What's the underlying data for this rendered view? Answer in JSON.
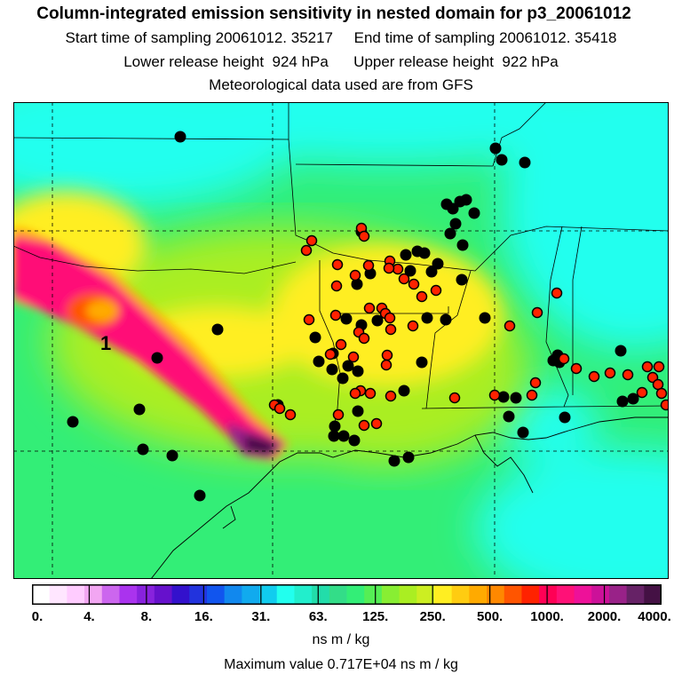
{
  "header": {
    "title": "Column-integrated emission sensitivity in nested domain for p3_20061012",
    "sampling": "Start time of sampling 20061012. 35217     End time of sampling 20061012. 35418",
    "heights": "Lower release height  924 hPa      Upper release height  922 hPa",
    "met": "Meteorological data used are from GFS"
  },
  "map": {
    "release_label": "1",
    "colors": {
      "background_green": "#33ee77",
      "cyan": "#22ffee",
      "yellow": "#ffee22",
      "magenta": "#ff1177",
      "dark_purple": "#441144",
      "marker_black": "#000000",
      "marker_red": "#ff2200"
    }
  },
  "colorbar": {
    "tick_labels": [
      "0.",
      "4.",
      "8.",
      "16.",
      "31.",
      "63.",
      "125.",
      "250.",
      "500.",
      "1000.",
      "2000.",
      "4000."
    ],
    "colors": [
      "#ffffff",
      "#ffe6ff",
      "#ffccff",
      "#f2a6f2",
      "#cc66ee",
      "#aa33ee",
      "#8822dd",
      "#6611cc",
      "#3311cc",
      "#2233dd",
      "#1155ee",
      "#1188ee",
      "#11aaee",
      "#11ccee",
      "#22ffee",
      "#22eecc",
      "#22ddaa",
      "#33dd88",
      "#33ee77",
      "#55ee55",
      "#88ee33",
      "#aaee22",
      "#ccee22",
      "#ffee22",
      "#ffcc11",
      "#ffaa00",
      "#ff8800",
      "#ff5500",
      "#ff2200",
      "#ff0055",
      "#ff1177",
      "#ee1199",
      "#cc1199",
      "#992288",
      "#662266",
      "#441144"
    ],
    "units": "ns m / kg",
    "max_value": "Maximum value  0.717E+04 ns m / kg"
  }
}
